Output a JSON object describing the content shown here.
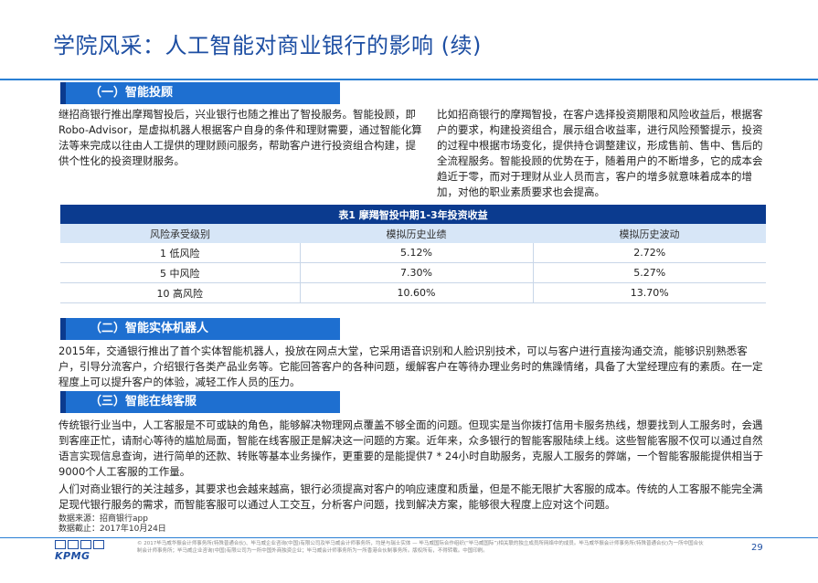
{
  "page": {
    "title": "学院风采：人工智能对商业银行的影响 (续)",
    "page_number": "29"
  },
  "section1": {
    "heading": "（一）智能投顾",
    "left_text": "继招商银行推出摩羯智投后，兴业银行也随之推出了智投服务。智能投顾，即Robo-Advisor，是虚拟机器人根据客户自身的条件和理财需要，通过智能化算法等来完成以往由人工提供的理财顾问服务，帮助客户进行投资组合构建，提供个性化的投资理财服务。",
    "right_text": "比如招商银行的摩羯智投，在客户选择投资期限和风险收益后，根据客户的要求，构建投资组合，展示组合收益率，进行风险预警提示，投资的过程中根据市场变化，提供持仓调整建议，形成售前、售中、售后的全流程服务。智能投顾的优势在于，随着用户的不断增多，它的成本会趋近于零，而对于理财从业人员而言，客户的增多就意味着成本的增加，对他的职业素质要求也会提高。"
  },
  "table": {
    "title": "表1   摩羯智投中期1-3年投资收益",
    "headers": [
      "风险承受级别",
      "模拟历史业绩",
      "模拟历史波动"
    ],
    "rows": [
      [
        "1 低风险",
        "5.12%",
        "2.72%"
      ],
      [
        "5 中风险",
        "7.30%",
        "5.27%"
      ],
      [
        "10 高风险",
        "10.60%",
        "13.70%"
      ]
    ]
  },
  "section2": {
    "heading": "（二）智能实体机器人",
    "text": "2015年，交通银行推出了首个实体智能机器人，投放在网点大堂，它采用语音识别和人脸识别技术，可以与客户进行直接沟通交流，能够识别熟悉客户，引导分流客户，介绍银行各类产品业务等。它能回答客户的各种问题，缓解客户在等待办理业务时的焦躁情绪，具备了大堂经理应有的素质。在一定程度上可以提升客户的体验，减轻工作人员的压力。"
  },
  "section3": {
    "heading": "（三）智能在线客服",
    "para1": "传统银行业当中，人工客服是不可或缺的角色，能够解决物理网点覆盖不够全面的问题。但现实是当你拨打信用卡服务热线，想要找到人工服务时，会遇到客座正忙，请耐心等待的尴尬局面，智能在线客服正是解决这一问题的方案。近年来，众多银行的智能客服陆续上线。这些智能客服不仅可以通过自然语言实现信息查询，进行简单的还款、转账等基本业务操作，更重要的是能提供7 * 24小时自助服务，克服人工服务的弊端，一个智能客服能提供相当于9000个人工客服的工作量。",
    "para2": "人们对商业银行的关注越多，其要求也会越来越高，银行必须提高对客户的响应速度和质量，但是不能无限扩大客服的成本。传统的人工客服不能完全满足现代银行服务的需求，而智能客服可以通过人工交互，分析客户问题，找到解决方案，能够很大程度上应对这个问题。"
  },
  "source": {
    "line1": "数据来源：招商银行app",
    "line2": "数据截止：2017年10月24日"
  },
  "footer": {
    "logo_text": "KPMG",
    "legal": "© 2017毕马威华振会计师事务所(特殊普通合伙)、毕马威企业咨询(中国)有限公司及毕马威会计师事务所，均是与瑞士实体 — 毕马威国际合作组织(“毕马威国际”)相关联的独立成员所网络中的成员。毕马威华振会计师事务所(特殊普通合伙)为一所中国合伙制会计师事务所；毕马威企业咨询(中国)有限公司为一所中国外商独资企业；毕马威会计师事务所为一所香港合伙制事务所。版权所有，不得转载。中国印刷。"
  },
  "colors": {
    "title_blue": "#1e4fa3",
    "section_blue": "#1e6fd0",
    "dark_navy": "#0b3b8f",
    "table_header_bg": "#d7e6f7"
  }
}
